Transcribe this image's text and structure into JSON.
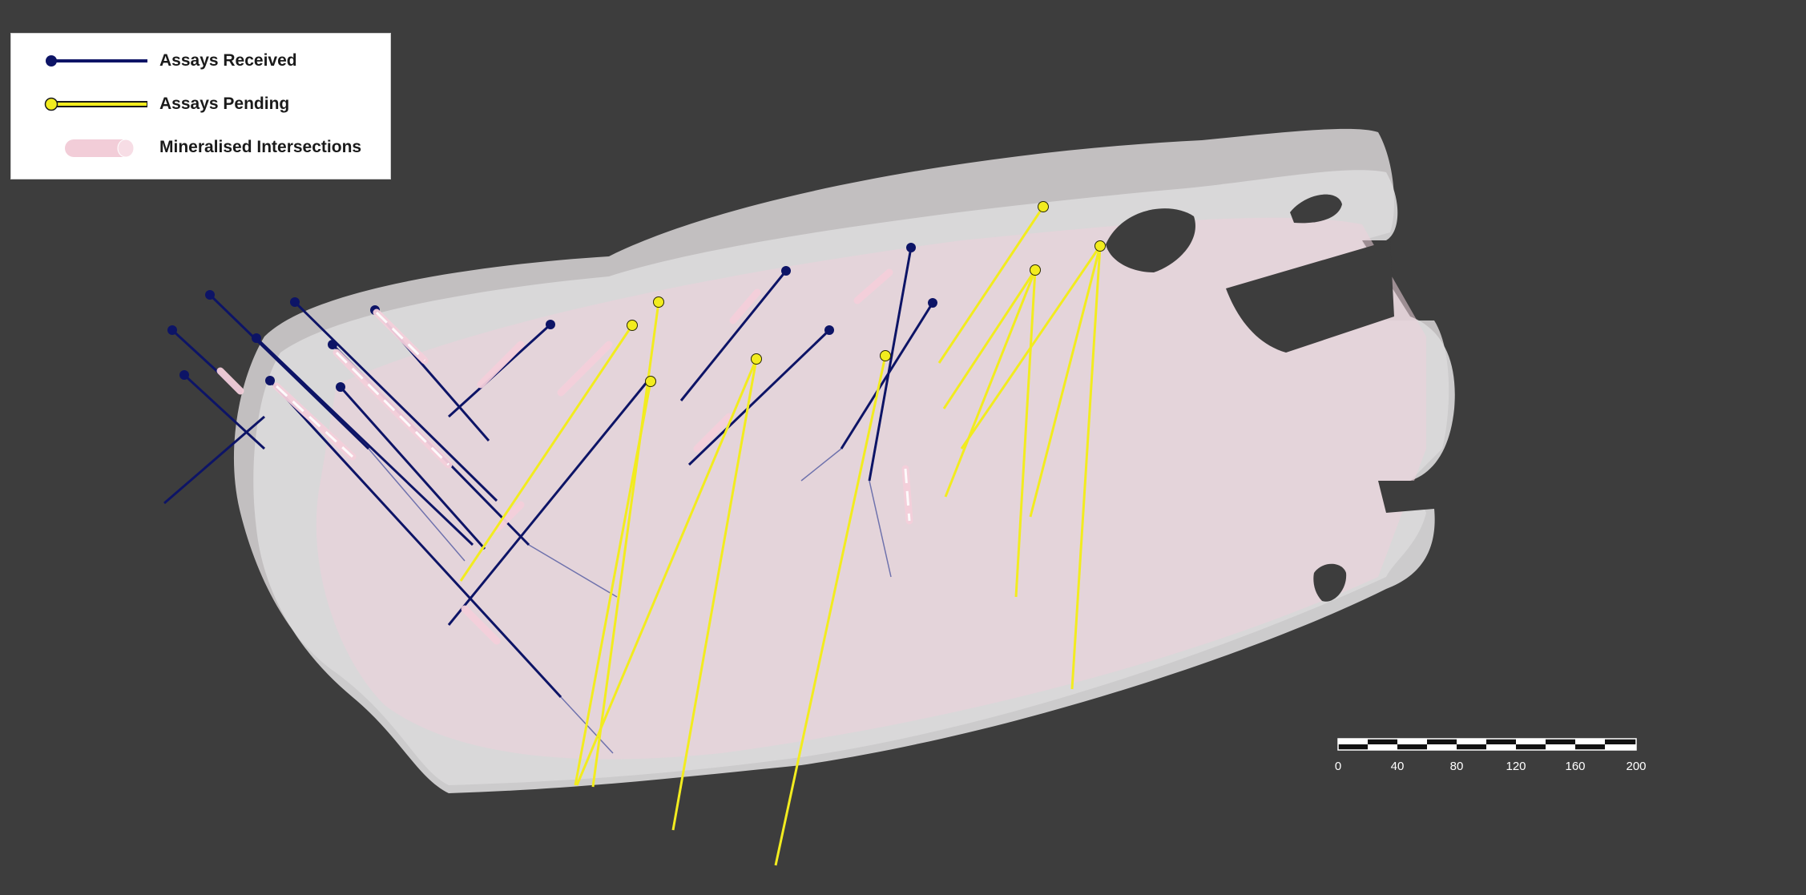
{
  "legend": {
    "received_label": "Assays Received",
    "pending_label": "Assays Pending",
    "mineralised_label": "Mineralised Intersections"
  },
  "scale_bar": {
    "labels": [
      "0",
      "40",
      "80",
      "120",
      "160",
      "200"
    ]
  },
  "colors": {
    "background": "#3d3d3d",
    "received": "#0d1466",
    "pending": "#f2ec1f",
    "mineralised": "#f2cdd8",
    "orebody": "#d3d0d1"
  },
  "drillholes_received_count": 16,
  "drillholes_pending_count": 11
}
